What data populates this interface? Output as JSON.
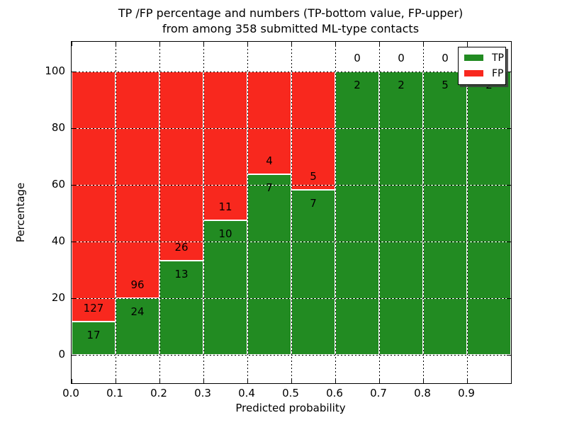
{
  "title": {
    "line1": "TP /FP percentage and numbers (TP-bottom value, FP-upper)",
    "line2": "from among 358 submitted ML-type contacts"
  },
  "axes": {
    "xlabel": "Predicted probability",
    "ylabel": "Percentage",
    "x_ticks": [
      "0.0",
      "0.1",
      "0.2",
      "0.3",
      "0.4",
      "0.5",
      "0.6",
      "0.7",
      "0.8",
      "0.9"
    ],
    "y_ticks": [
      "0",
      "20",
      "40",
      "60",
      "80",
      "100"
    ]
  },
  "legend": {
    "position": "upper-right",
    "items": [
      {
        "label": "TP",
        "color": "#228b22"
      },
      {
        "label": "FP",
        "color": "#f8281e"
      }
    ]
  },
  "chart_data": {
    "type": "bar",
    "stacked": true,
    "normalized_to_percent": true,
    "title": "TP /FP percentage and numbers (TP-bottom value, FP-upper) from among 358 submitted ML-type contacts",
    "xlabel": "Predicted probability",
    "ylabel": "Percentage",
    "total_contacts": 358,
    "bin_width": 0.1,
    "bin_starts": [
      0.0,
      0.1,
      0.2,
      0.3,
      0.4,
      0.5,
      0.6,
      0.7,
      0.8,
      0.9
    ],
    "series": [
      {
        "name": "TP",
        "color": "#228b22",
        "counts": [
          17,
          24,
          13,
          10,
          7,
          7,
          2,
          2,
          5,
          2
        ]
      },
      {
        "name": "FP",
        "color": "#f8281e",
        "counts": [
          127,
          96,
          26,
          11,
          4,
          5,
          0,
          0,
          0,
          0
        ]
      }
    ],
    "tp_percent": [
      11.8,
      20.0,
      33.3,
      47.6,
      63.6,
      58.3,
      100.0,
      100.0,
      100.0,
      100.0
    ],
    "xlim": [
      0.0,
      1.0
    ],
    "ylim": [
      -10,
      110.5
    ],
    "grid": "dotted",
    "legend_position": "upper right"
  }
}
